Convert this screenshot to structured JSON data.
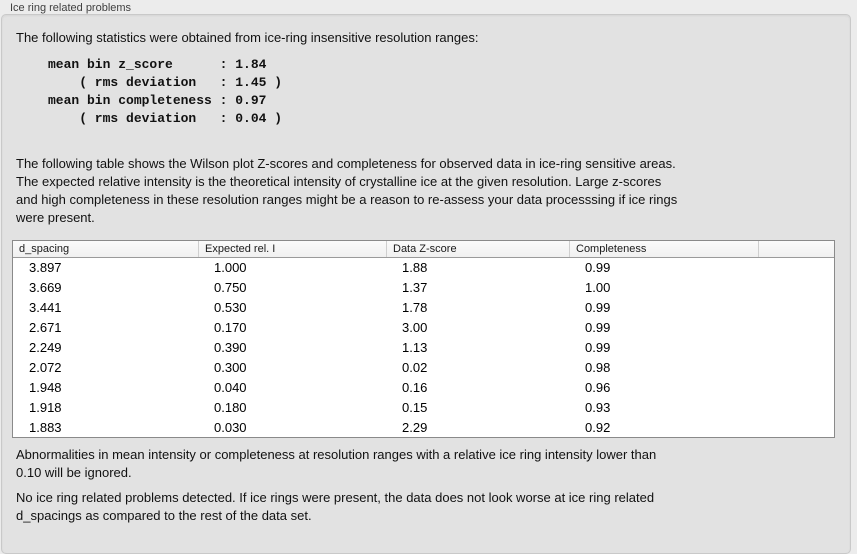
{
  "panel": {
    "title": "Ice ring related problems"
  },
  "intro": {
    "text": "The following statistics were obtained from ice-ring insensitive resolution ranges:",
    "stats_block": "mean bin z_score      : 1.84\n    ( rms deviation   : 1.45 )\nmean bin completeness : 0.97\n    ( rms deviation   : 0.04 )",
    "stats": {
      "mean_bin_z_score": "1.84",
      "z_score_rms_deviation": "1.45",
      "mean_bin_completeness": "0.97",
      "completeness_rms_deviation": "0.04"
    }
  },
  "description": {
    "text": "The following table shows the Wilson plot Z-scores and completeness for observed data in ice-ring sensitive areas.\nThe expected relative intensity is the theoretical intensity of crystalline ice at the given resolution. Large z-scores\nand high completeness in these resolution ranges might be a reason to re-assess your data processsing if ice rings\nwere present."
  },
  "table": {
    "columns": [
      "d_spacing",
      "Expected rel. I",
      "Data Z-score",
      "Completeness"
    ],
    "rows": [
      [
        "3.897",
        "1.000",
        "1.88",
        "0.99"
      ],
      [
        "3.669",
        "0.750",
        "1.37",
        "1.00"
      ],
      [
        "3.441",
        "0.530",
        "1.78",
        "0.99"
      ],
      [
        "2.671",
        "0.170",
        "3.00",
        "0.99"
      ],
      [
        "2.249",
        "0.390",
        "1.13",
        "0.99"
      ],
      [
        "2.072",
        "0.300",
        "0.02",
        "0.98"
      ],
      [
        "1.948",
        "0.040",
        "0.16",
        "0.96"
      ],
      [
        "1.918",
        "0.180",
        "0.15",
        "0.93"
      ],
      [
        "1.883",
        "0.030",
        "2.29",
        "0.92"
      ]
    ]
  },
  "footer": {
    "note1": "Abnormalities in mean intensity or completeness at resolution ranges with a relative ice ring intensity lower than\n0.10 will be ignored.",
    "note2": "No ice ring related problems detected. If ice rings were present, the data does not look worse at ice ring related\nd_spacings as compared to the rest of the data set."
  },
  "colors": {
    "page_background": "#ececec",
    "panel_background": "#e2e2e2",
    "panel_border": "#c9c9c9",
    "table_background": "#ffffff",
    "table_border": "#8a8a8a",
    "table_header_background": "#f6f6f6",
    "text": "#111111"
  }
}
